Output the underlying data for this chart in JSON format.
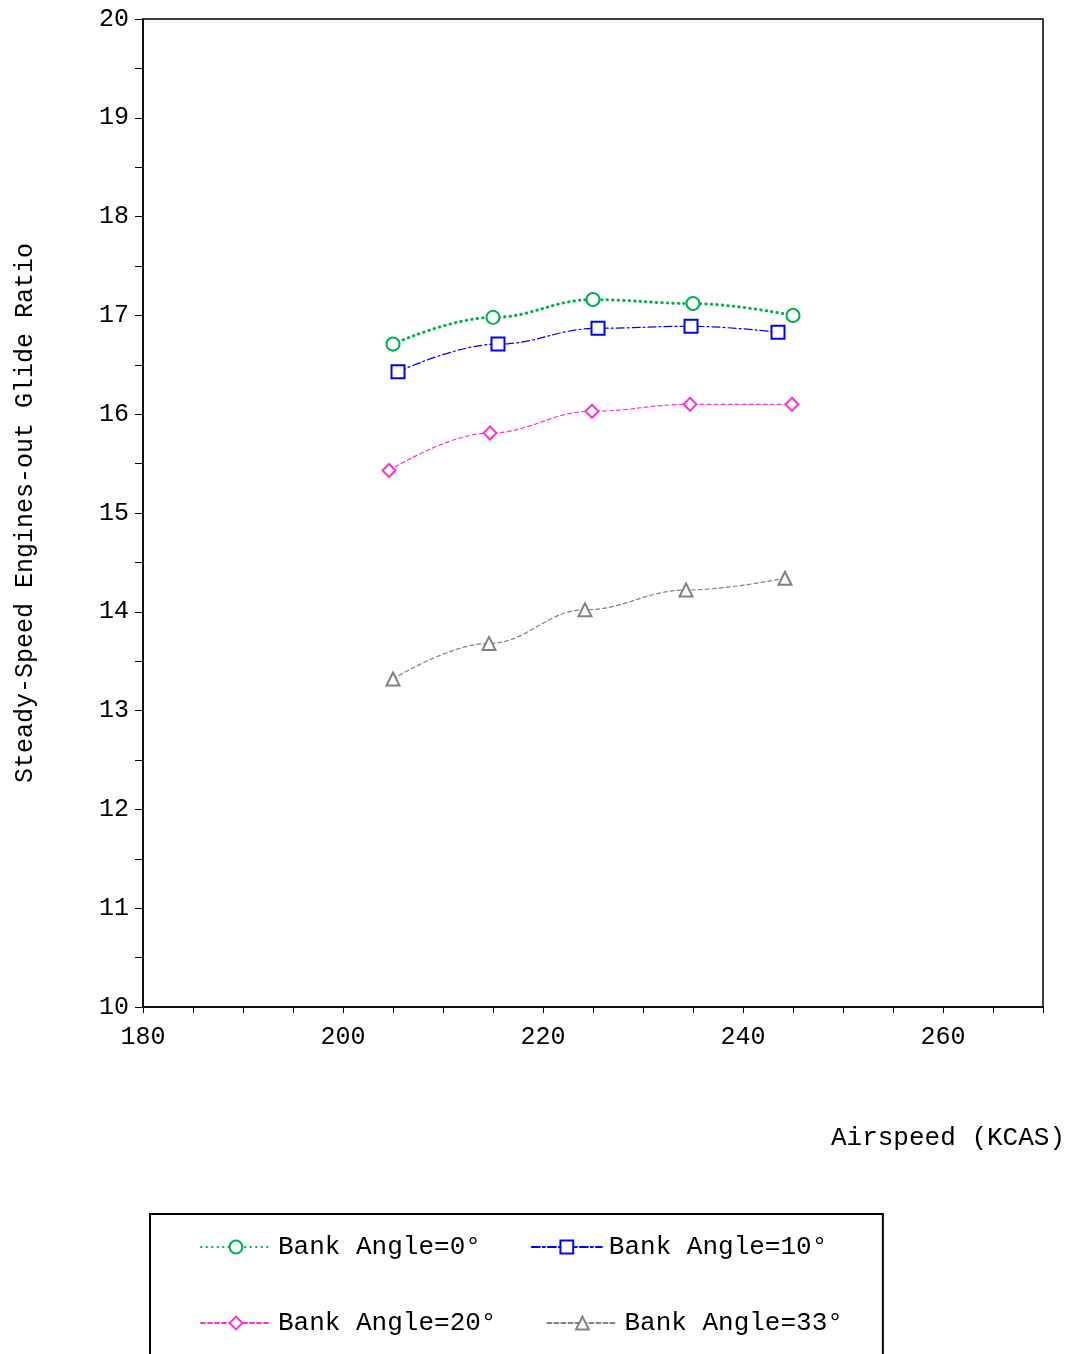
{
  "chart_data": {
    "type": "line",
    "xlabel": "Airspeed (KCAS)",
    "ylabel": "Steady-Speed Engines-out Glide Ratio",
    "xlim": [
      180,
      270
    ],
    "xticks": [
      180,
      {
        "value": 185,
        "label": null
      },
      {
        "value": 190,
        "label": null
      },
      {
        "value": 195,
        "label": null
      },
      200,
      {
        "value": 205,
        "label": null
      },
      {
        "value": 210,
        "label": null
      },
      {
        "value": 215,
        "label": null
      },
      220,
      {
        "value": 225,
        "label": null
      },
      {
        "value": 230,
        "label": null
      },
      {
        "value": 235,
        "label": null
      },
      240,
      {
        "value": 245,
        "label": null
      },
      {
        "value": 250,
        "label": null
      },
      {
        "value": 255,
        "label": null
      },
      260,
      {
        "value": 265,
        "label": null
      },
      {
        "value": 270,
        "label": null
      }
    ],
    "ylim": [
      10,
      20
    ],
    "yticks": [
      10,
      {
        "value": 10.5,
        "label": null
      },
      11,
      {
        "value": 11.5,
        "label": null
      },
      12,
      {
        "value": 12.5,
        "label": null
      },
      13,
      {
        "value": 13.5,
        "label": null
      },
      14,
      {
        "value": 14.5,
        "label": null
      },
      15,
      {
        "value": 15.5,
        "label": null
      },
      16,
      {
        "value": 16.5,
        "label": null
      },
      17,
      {
        "value": 17.5,
        "label": null
      },
      18,
      {
        "value": 18.5,
        "label": null
      },
      19,
      {
        "value": 19.5,
        "label": null
      },
      20
    ],
    "grid": false,
    "legend": "bottom",
    "series": [
      {
        "name": "Bank Angle=0°",
        "color": "#00b050",
        "marker": "circle",
        "line_style": "dotted",
        "x": [
          205,
          215,
          225,
          235,
          245
        ],
        "values": [
          16.71,
          16.98,
          17.16,
          17.12,
          17.0
        ]
      },
      {
        "name": "Bank Angle=10°",
        "color": "#0000ff",
        "marker": "square",
        "line_style": "dashdot",
        "x": [
          205.5,
          215.5,
          225.5,
          234.8,
          243.5
        ],
        "values": [
          16.43,
          16.71,
          16.87,
          16.89,
          16.83
        ]
      },
      {
        "name": "Bank Angle=20°",
        "color": "#ff33cc",
        "marker": "diamond",
        "line_style": "dashed",
        "x": [
          204.6,
          214.7,
          224.9,
          234.7,
          244.9
        ],
        "values": [
          15.43,
          15.81,
          16.03,
          16.1,
          16.1
        ]
      },
      {
        "name": "Bank Angle=33°",
        "color": "#808080",
        "marker": "triangle",
        "line_style": "dashed",
        "x": [
          205,
          214.6,
          224.2,
          234.3,
          244.2
        ],
        "values": [
          13.32,
          13.68,
          14.02,
          14.22,
          14.34
        ]
      }
    ]
  }
}
